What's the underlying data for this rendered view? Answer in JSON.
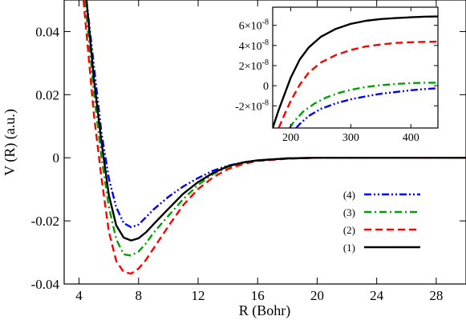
{
  "chart_data": [
    {
      "type": "line",
      "xlabel": "R (Bohr)",
      "ylabel": "V (R) (a.u.)",
      "xlim": [
        3,
        30
      ],
      "ylim": [
        -0.04,
        0.05
      ],
      "x_ticks": [
        4,
        8,
        12,
        16,
        20,
        24,
        28
      ],
      "x_tick_labels": [
        "4",
        "8",
        "12",
        "16",
        "20",
        "24",
        "28"
      ],
      "y_ticks": [
        -0.04,
        -0.02,
        0,
        0.02,
        0.04
      ],
      "y_tick_labels": [
        "-0.04",
        "-0.02",
        "0",
        "0.02",
        "0.04"
      ],
      "grid": false,
      "legend_position": "bottom-right",
      "series": [
        {
          "name": "(4)",
          "color": "#0000ff",
          "dash": "dashdotdot",
          "x": [
            4.5,
            5,
            5.5,
            6,
            6.5,
            7,
            7.5,
            8,
            8.5,
            9,
            10,
            11,
            12,
            13,
            14,
            15,
            16,
            18,
            20,
            24,
            30
          ],
          "y": [
            0.05,
            0.0291,
            0.0081,
            -0.0065,
            -0.0157,
            -0.0207,
            -0.022,
            -0.0212,
            -0.0188,
            -0.0164,
            -0.0124,
            -0.0091,
            -0.0064,
            -0.0041,
            -0.0025,
            -0.0015,
            -0.0008,
            -0.0002,
            0,
            0,
            0
          ]
        },
        {
          "name": "(3)",
          "color": "#00a000",
          "dash": "dashdot",
          "x": [
            4.4,
            5,
            5.5,
            6,
            6.5,
            7,
            7.5,
            8,
            8.5,
            9,
            10,
            11,
            12,
            13,
            14,
            15,
            16,
            18,
            20,
            24,
            30
          ],
          "y": [
            0.05,
            0.0206,
            0.0004,
            -0.0155,
            -0.0258,
            -0.0306,
            -0.031,
            -0.0297,
            -0.0271,
            -0.0238,
            -0.0184,
            -0.0131,
            -0.0086,
            -0.0052,
            -0.0029,
            -0.0016,
            -0.0008,
            -0.0002,
            0,
            0,
            0
          ]
        },
        {
          "name": "(2)",
          "color": "#ff0000",
          "dash": "dashed",
          "x": [
            4.3,
            5,
            5.5,
            6,
            6.5,
            7,
            7.5,
            8,
            8.5,
            9,
            10,
            11,
            12,
            13,
            14,
            15,
            16,
            18,
            20,
            24,
            30
          ],
          "y": [
            0.05,
            0.0136,
            -0.0061,
            -0.0234,
            -0.0327,
            -0.0362,
            -0.0367,
            -0.0351,
            -0.0323,
            -0.0288,
            -0.0217,
            -0.015,
            -0.0099,
            -0.0062,
            -0.0036,
            -0.002,
            -0.001,
            -0.0003,
            0,
            0,
            0
          ]
        },
        {
          "name": "(1)",
          "color": "#000000",
          "dash": "solid",
          "x": [
            4.5,
            5,
            5.5,
            6,
            6.5,
            7,
            7.5,
            8,
            8.5,
            9,
            10,
            11,
            12,
            13,
            14,
            15,
            16,
            18,
            20,
            24,
            30
          ],
          "y": [
            0.05,
            0.0248,
            0.0052,
            -0.0118,
            -0.0214,
            -0.0253,
            -0.0262,
            -0.0255,
            -0.0236,
            -0.0211,
            -0.0162,
            -0.0114,
            -0.0077,
            -0.0048,
            -0.0027,
            -0.0015,
            -0.0008,
            -0.0002,
            0,
            0,
            0
          ]
        }
      ]
    },
    {
      "type": "line",
      "xlabel": "",
      "ylabel": "",
      "xlim": [
        170,
        445
      ],
      "ylim": [
        -4.2e-08,
        7.8e-08
      ],
      "x_ticks": [
        200,
        300,
        400
      ],
      "x_tick_labels": [
        "200",
        "300",
        "400"
      ],
      "y_tick_labels_parts": [
        {
          "value": 6e-08,
          "mantissa": "6×10",
          "exp": "-8"
        },
        {
          "value": 4e-08,
          "mantissa": "4×10",
          "exp": "-8"
        },
        {
          "value": 2e-08,
          "mantissa": "2×10",
          "exp": "-8"
        },
        {
          "value": 0,
          "mantissa": "0",
          "exp": ""
        },
        {
          "value": -2e-08,
          "mantissa": "-2×10",
          "exp": "-8"
        }
      ],
      "legend_position": "none",
      "series": [
        {
          "name": "(4)",
          "color": "#0000ff",
          "dash": "dashdotdot",
          "x": [
            209,
            215,
            230,
            250,
            275,
            300,
            325,
            350,
            375,
            400,
            425,
            445
          ],
          "y": [
            -4.2e-08,
            -3.8e-08,
            -3e-08,
            -2.3e-08,
            -1.75e-08,
            -1.35e-08,
            -1.05e-08,
            -8e-09,
            -6.2e-09,
            -4.5e-09,
            -3.2e-09,
            -2.5e-09
          ]
        },
        {
          "name": "(3)",
          "color": "#00a000",
          "dash": "dashdot",
          "x": [
            198,
            205,
            220,
            240,
            260,
            280,
            300,
            325,
            350,
            375,
            400,
            425,
            445
          ],
          "y": [
            -4.2e-08,
            -3.6e-08,
            -2.6e-08,
            -1.75e-08,
            -1.15e-08,
            -7.2e-09,
            -4e-09,
            -1.2e-09,
            5e-10,
            1.8e-09,
            2.6e-09,
            3e-09,
            3e-09
          ]
        },
        {
          "name": "(2)",
          "color": "#ff0000",
          "dash": "dashed",
          "x": [
            180,
            190,
            200,
            215,
            230,
            250,
            275,
            300,
            325,
            350,
            375,
            400,
            425,
            445
          ],
          "y": [
            -4.2e-08,
            -2.8e-08,
            -1.5e-08,
            1e-09,
            1.3e-08,
            2.3e-08,
            3.05e-08,
            3.55e-08,
            3.9e-08,
            4.1e-08,
            4.25e-08,
            4.32e-08,
            4.36e-08,
            4.38e-08
          ]
        },
        {
          "name": "(1)",
          "color": "#000000",
          "dash": "solid",
          "x": [
            170,
            180,
            190,
            200,
            215,
            230,
            250,
            275,
            300,
            325,
            350,
            375,
            400,
            425,
            445
          ],
          "y": [
            -4.2e-08,
            -2.4e-08,
            -8e-09,
            8e-09,
            2.6e-08,
            3.8e-08,
            4.85e-08,
            5.65e-08,
            6.15e-08,
            6.45e-08,
            6.62e-08,
            6.72e-08,
            6.8e-08,
            6.86e-08,
            6.88e-08
          ]
        }
      ]
    }
  ]
}
